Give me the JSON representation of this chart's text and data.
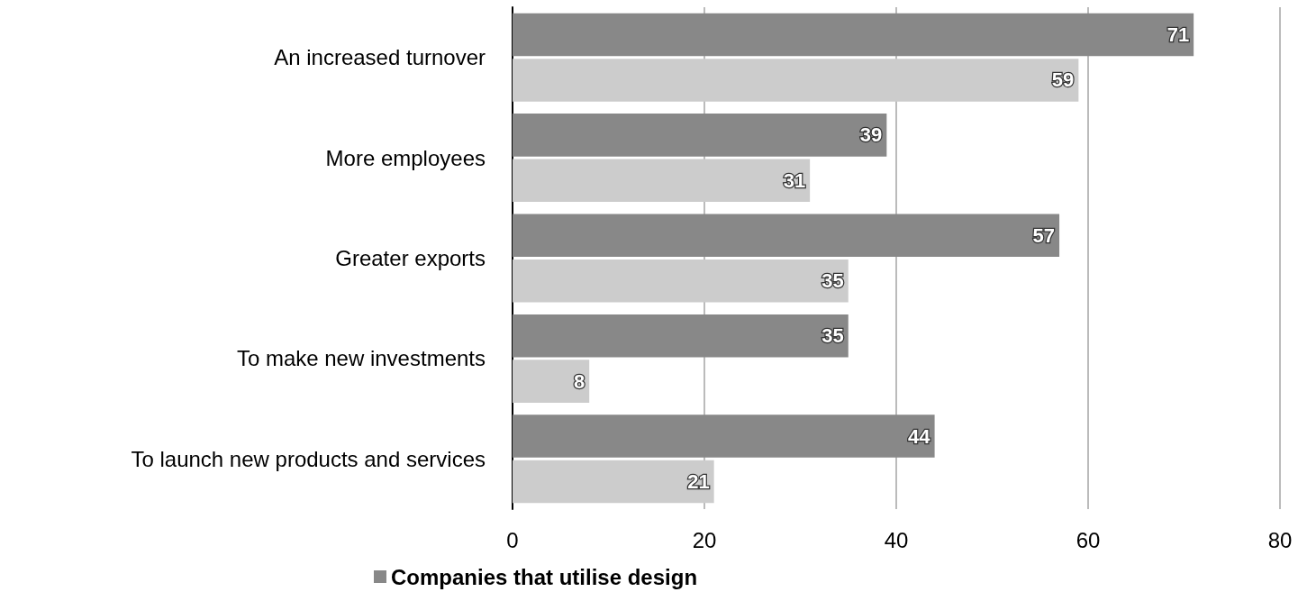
{
  "chart_data": {
    "type": "bar",
    "orientation": "horizontal",
    "categories": [
      "An increased turnover",
      "More employees",
      "Greater exports",
      "To make new investments",
      "To launch new products and services"
    ],
    "series": [
      {
        "name": "Companies that utilise design",
        "color": "#888888",
        "values": [
          71,
          39,
          57,
          35,
          44
        ]
      },
      {
        "color": "#cccccc",
        "values": [
          59,
          31,
          35,
          8,
          21
        ]
      }
    ],
    "xlim": [
      0,
      80
    ],
    "xticks": [
      0,
      20,
      40,
      60,
      80
    ],
    "grid": "x",
    "legend": "bottom",
    "data_labels": true
  }
}
